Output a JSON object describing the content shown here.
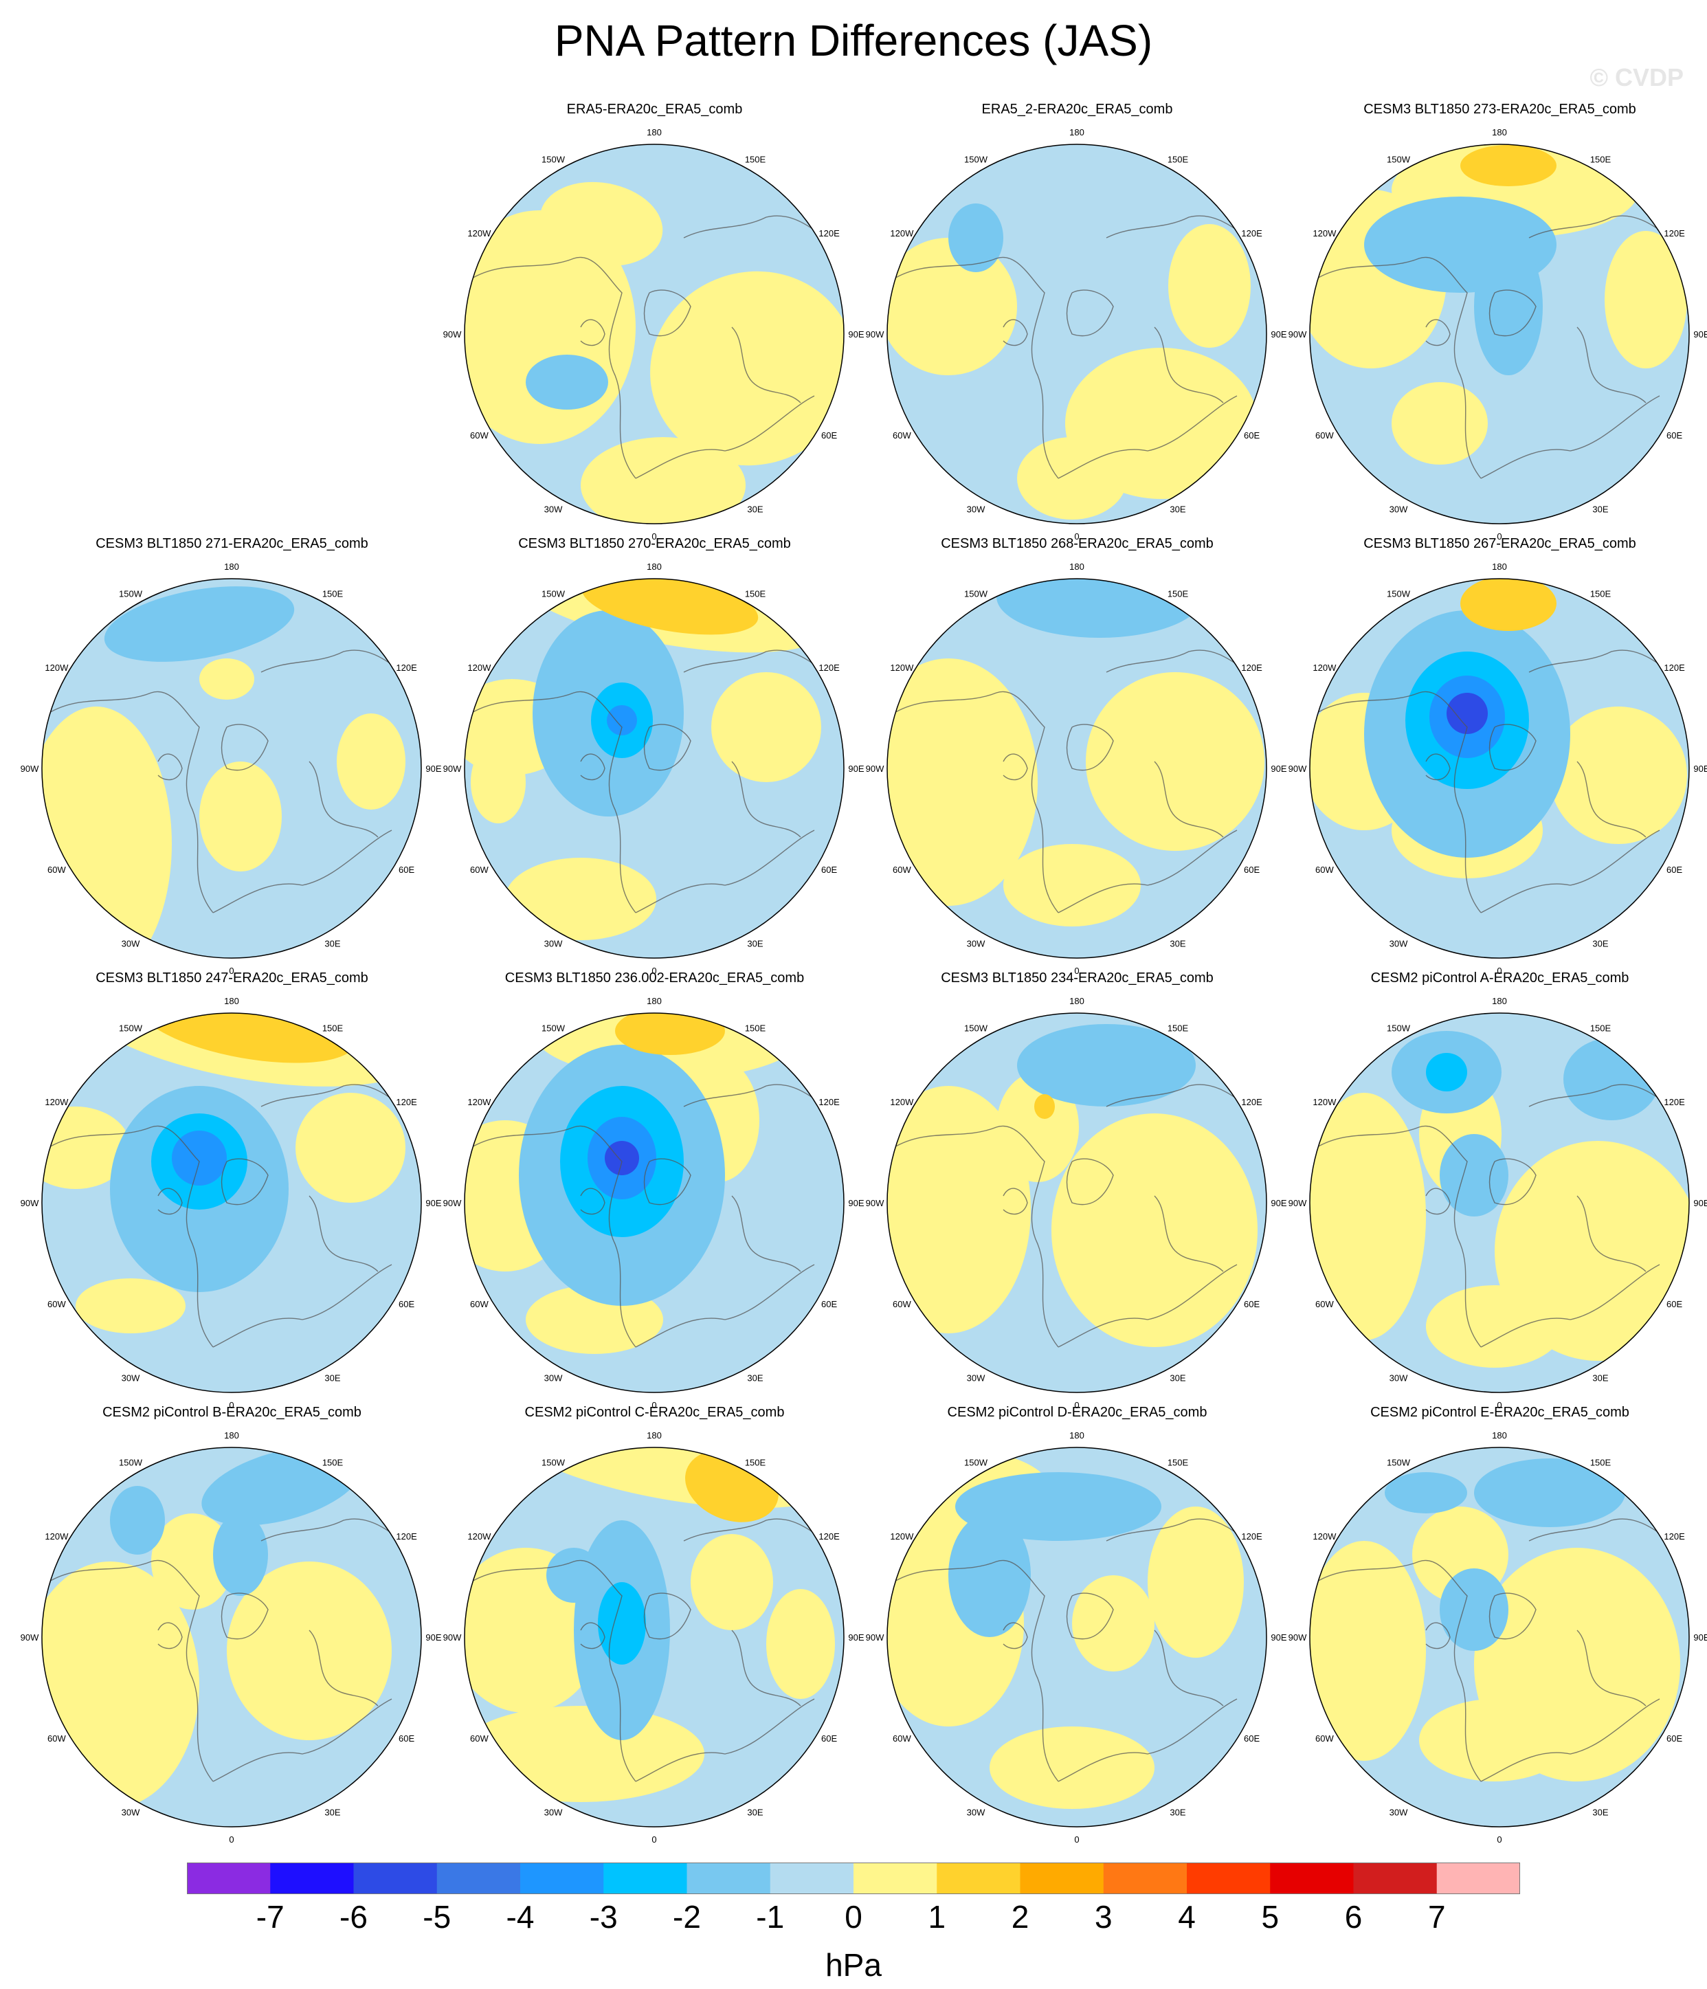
{
  "title": "PNA Pattern Differences (JAS)",
  "watermark": "© CVDP",
  "lon_labels": [
    "180",
    "150E",
    "120E",
    "90E",
    "60E",
    "30E",
    "0",
    "30W",
    "60W",
    "90W",
    "120W",
    "150W"
  ],
  "panels": [
    {
      "title": "ERA5-ERA20c_ERA5_comb",
      "row": 0,
      "col": 1,
      "blobs": []
    },
    {
      "title": "ERA5_2-ERA20c_ERA5_comb",
      "row": 0,
      "col": 2,
      "blobs": []
    },
    {
      "title": "CESM3 BLT1850 273-ERA20c_ERA5_comb",
      "row": 0,
      "col": 3,
      "blobs": []
    },
    {
      "title": "CESM3 BLT1850 271-ERA20c_ERA5_comb",
      "row": 1,
      "col": 0,
      "blobs": []
    },
    {
      "title": "CESM3 BLT1850 270-ERA20c_ERA5_comb",
      "row": 1,
      "col": 1,
      "blobs": []
    },
    {
      "title": "CESM3 BLT1850 268-ERA20c_ERA5_comb",
      "row": 1,
      "col": 2,
      "blobs": []
    },
    {
      "title": "CESM3 BLT1850 267-ERA20c_ERA5_comb",
      "row": 1,
      "col": 3,
      "blobs": []
    },
    {
      "title": "CESM3 BLT1850 247-ERA20c_ERA5_comb",
      "row": 2,
      "col": 0,
      "blobs": []
    },
    {
      "title": "CESM3 BLT1850 236.002-ERA20c_ERA5_comb",
      "row": 2,
      "col": 1,
      "blobs": []
    },
    {
      "title": "CESM3 BLT1850 234-ERA20c_ERA5_comb",
      "row": 2,
      "col": 2,
      "blobs": []
    },
    {
      "title": "CESM2 piControl A-ERA20c_ERA5_comb",
      "row": 2,
      "col": 3,
      "blobs": []
    },
    {
      "title": "CESM2 piControl B-ERA20c_ERA5_comb",
      "row": 3,
      "col": 0,
      "blobs": []
    },
    {
      "title": "CESM2 piControl C-ERA20c_ERA5_comb",
      "row": 3,
      "col": 1,
      "blobs": []
    },
    {
      "title": "CESM2 piControl D-ERA20c_ERA5_comb",
      "row": 3,
      "col": 2,
      "blobs": []
    },
    {
      "title": "CESM2 piControl E-ERA20c_ERA5_comb",
      "row": 3,
      "col": 3,
      "blobs": []
    }
  ],
  "colorbar": {
    "labels": [
      "-7",
      "-6",
      "-5",
      "-4",
      "-3",
      "-2",
      "-1",
      "0",
      "1",
      "2",
      "3",
      "4",
      "5",
      "6",
      "7"
    ],
    "colors": [
      "#8b2be2",
      "#1e0fff",
      "#2d4be6",
      "#3a78e6",
      "#1e96ff",
      "#00c3ff",
      "#78c8f0",
      "#b4dcf0",
      "#fff68c",
      "#ffd22d",
      "#ffaa00",
      "#ff7814",
      "#ff3c00",
      "#e60000",
      "#d21e1e",
      "#ffb4b4"
    ],
    "units": "hPa"
  }
}
